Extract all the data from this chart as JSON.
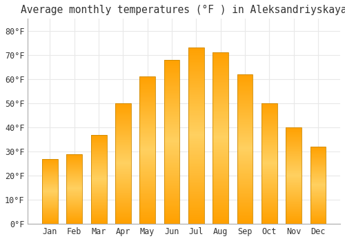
{
  "title": "Average monthly temperatures (°F ) in Aleksandriyskaya",
  "months": [
    "Jan",
    "Feb",
    "Mar",
    "Apr",
    "May",
    "Jun",
    "Jul",
    "Aug",
    "Sep",
    "Oct",
    "Nov",
    "Dec"
  ],
  "values": [
    27,
    29,
    37,
    50,
    61,
    68,
    73,
    71,
    62,
    50,
    40,
    32
  ],
  "bar_color_top": "#FFB800",
  "bar_color_mid": "#FFD060",
  "bar_color_bottom": "#FF9900",
  "background_color": "#FFFFFF",
  "plot_bg_color": "#FFFFFF",
  "grid_color": "#E8E8E8",
  "text_color": "#333333",
  "ylabel_ticks": [
    0,
    10,
    20,
    30,
    40,
    50,
    60,
    70,
    80
  ],
  "ylim": [
    0,
    85
  ],
  "title_fontsize": 10.5,
  "tick_fontsize": 8.5,
  "bar_width": 0.65
}
